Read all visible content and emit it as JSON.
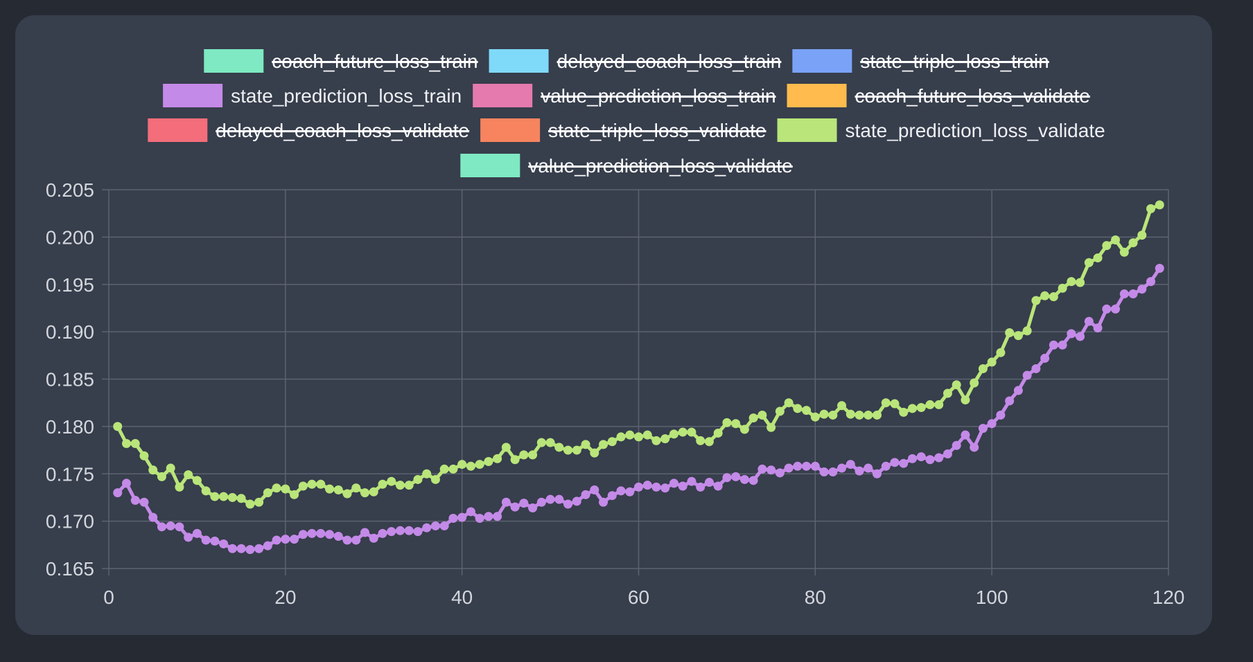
{
  "chart_data": {
    "type": "line",
    "xlim": [
      0,
      120
    ],
    "ylim": [
      0.165,
      0.205
    ],
    "x_ticks": [
      "0",
      "20",
      "40",
      "60",
      "80",
      "100",
      "120"
    ],
    "y_ticks": [
      "0.165",
      "0.170",
      "0.175",
      "0.180",
      "0.185",
      "0.190",
      "0.195",
      "0.200",
      "0.205"
    ],
    "grid": true,
    "legend_position": "top",
    "legend": [
      {
        "label": "coach_future_loss_train",
        "color": "#7ee9c2",
        "hidden": true
      },
      {
        "label": "delayed_coach_loss_train",
        "color": "#7fd9f8",
        "hidden": true
      },
      {
        "label": "state_triple_loss_train",
        "color": "#7aa2f7",
        "hidden": true
      },
      {
        "label": "state_prediction_loss_train",
        "color": "#c48ae8",
        "hidden": false
      },
      {
        "label": "value_prediction_loss_train",
        "color": "#e47aae",
        "hidden": true
      },
      {
        "label": "coach_future_loss_validate",
        "color": "#ffbb4d",
        "hidden": true
      },
      {
        "label": "delayed_coach_loss_validate",
        "color": "#f36d7a",
        "hidden": true
      },
      {
        "label": "state_triple_loss_validate",
        "color": "#f7845f",
        "hidden": true
      },
      {
        "label": "state_prediction_loss_validate",
        "color": "#b9e57a",
        "hidden": false
      },
      {
        "label": "value_prediction_loss_validate",
        "color": "#7ee9c2",
        "hidden": true
      }
    ],
    "series": [
      {
        "name": "state_prediction_loss_train",
        "color": "#c48ae8",
        "x": [
          1,
          2,
          3,
          4,
          5,
          6,
          7,
          8,
          9,
          10,
          11,
          12,
          13,
          14,
          15,
          16,
          17,
          18,
          19,
          20,
          21,
          22,
          23,
          24,
          25,
          26,
          27,
          28,
          29,
          30,
          31,
          32,
          33,
          34,
          35,
          36,
          37,
          38,
          39,
          40,
          41,
          42,
          43,
          44,
          45,
          46,
          47,
          48,
          49,
          50,
          51,
          52,
          53,
          54,
          55,
          56,
          57,
          58,
          59,
          60,
          61,
          62,
          63,
          64,
          65,
          66,
          67,
          68,
          69,
          70,
          71,
          72,
          73,
          74,
          75,
          76,
          77,
          78,
          79,
          80,
          81,
          82,
          83,
          84,
          85,
          86,
          87,
          88,
          89,
          90,
          91,
          92,
          93,
          94,
          95,
          96,
          97,
          98,
          99,
          100,
          101,
          102,
          103,
          104,
          105,
          106,
          107,
          108,
          109,
          110,
          111,
          112,
          113,
          114,
          115,
          116,
          117,
          118,
          119
        ],
        "y": [
          0.173,
          0.174,
          0.1722,
          0.172,
          0.1704,
          0.1694,
          0.1695,
          0.1694,
          0.1683,
          0.1687,
          0.168,
          0.1679,
          0.1676,
          0.1671,
          0.1671,
          0.167,
          0.1671,
          0.1674,
          0.168,
          0.1681,
          0.1681,
          0.1686,
          0.1687,
          0.1687,
          0.1686,
          0.1684,
          0.168,
          0.168,
          0.1688,
          0.1682,
          0.1687,
          0.1689,
          0.169,
          0.169,
          0.1689,
          0.1693,
          0.1695,
          0.1695,
          0.1703,
          0.1704,
          0.171,
          0.1703,
          0.1705,
          0.1705,
          0.172,
          0.1715,
          0.1719,
          0.1714,
          0.172,
          0.1723,
          0.1723,
          0.1718,
          0.1721,
          0.1728,
          0.1733,
          0.172,
          0.1727,
          0.1732,
          0.1731,
          0.1736,
          0.1738,
          0.1736,
          0.1735,
          0.174,
          0.1737,
          0.1742,
          0.1736,
          0.1741,
          0.1737,
          0.1746,
          0.1747,
          0.1744,
          0.1743,
          0.1755,
          0.1754,
          0.1751,
          0.1756,
          0.1758,
          0.1758,
          0.1758,
          0.1752,
          0.1752,
          0.1756,
          0.176,
          0.1753,
          0.1756,
          0.175,
          0.1758,
          0.1762,
          0.1761,
          0.1766,
          0.1768,
          0.1765,
          0.1767,
          0.1771,
          0.178,
          0.1791,
          0.1778,
          0.1798,
          0.1803,
          0.1812,
          0.1827,
          0.1838,
          0.1854,
          0.1861,
          0.1872,
          0.1886,
          0.1886,
          0.1898,
          0.1895,
          0.1911,
          0.1904,
          0.1924,
          0.1924,
          0.194,
          0.194,
          0.1945,
          0.1953,
          0.1967
        ]
      },
      {
        "name": "state_prediction_loss_validate",
        "color": "#b9e57a",
        "x": [
          1,
          2,
          3,
          4,
          5,
          6,
          7,
          8,
          9,
          10,
          11,
          12,
          13,
          14,
          15,
          16,
          17,
          18,
          19,
          20,
          21,
          22,
          23,
          24,
          25,
          26,
          27,
          28,
          29,
          30,
          31,
          32,
          33,
          34,
          35,
          36,
          37,
          38,
          39,
          40,
          41,
          42,
          43,
          44,
          45,
          46,
          47,
          48,
          49,
          50,
          51,
          52,
          53,
          54,
          55,
          56,
          57,
          58,
          59,
          60,
          61,
          62,
          63,
          64,
          65,
          66,
          67,
          68,
          69,
          70,
          71,
          72,
          73,
          74,
          75,
          76,
          77,
          78,
          79,
          80,
          81,
          82,
          83,
          84,
          85,
          86,
          87,
          88,
          89,
          90,
          91,
          92,
          93,
          94,
          95,
          96,
          97,
          98,
          99,
          100,
          101,
          102,
          103,
          104,
          105,
          106,
          107,
          108,
          109,
          110,
          111,
          112,
          113,
          114,
          115,
          116,
          117,
          118,
          119
        ],
        "y": [
          0.18,
          0.1782,
          0.1782,
          0.1769,
          0.1754,
          0.1747,
          0.1756,
          0.1736,
          0.1749,
          0.1743,
          0.1732,
          0.1726,
          0.1726,
          0.1725,
          0.1724,
          0.1718,
          0.172,
          0.173,
          0.1735,
          0.1734,
          0.1728,
          0.1737,
          0.1739,
          0.1739,
          0.1734,
          0.1733,
          0.1729,
          0.1735,
          0.173,
          0.1731,
          0.1739,
          0.1742,
          0.1738,
          0.1738,
          0.1744,
          0.175,
          0.1744,
          0.1755,
          0.1755,
          0.176,
          0.1758,
          0.176,
          0.1763,
          0.1766,
          0.1778,
          0.1765,
          0.177,
          0.177,
          0.1783,
          0.1783,
          0.1778,
          0.1775,
          0.1775,
          0.1781,
          0.1772,
          0.1781,
          0.1784,
          0.1789,
          0.1791,
          0.1789,
          0.1791,
          0.1785,
          0.1787,
          0.1792,
          0.1794,
          0.1794,
          0.1785,
          0.1784,
          0.1793,
          0.1804,
          0.1803,
          0.1797,
          0.1809,
          0.1812,
          0.1799,
          0.1816,
          0.1825,
          0.1819,
          0.1817,
          0.181,
          0.1813,
          0.1812,
          0.1822,
          0.1813,
          0.1812,
          0.1812,
          0.1812,
          0.1825,
          0.1824,
          0.1815,
          0.1819,
          0.182,
          0.1823,
          0.1823,
          0.1835,
          0.1844,
          0.1828,
          0.1846,
          0.1861,
          0.1868,
          0.1878,
          0.1899,
          0.1896,
          0.1901,
          0.1933,
          0.1938,
          0.1937,
          0.1946,
          0.1953,
          0.1952,
          0.1973,
          0.1978,
          0.1991,
          0.1997,
          0.1984,
          0.1994,
          0.2002,
          0.203,
          0.2034
        ]
      }
    ]
  }
}
